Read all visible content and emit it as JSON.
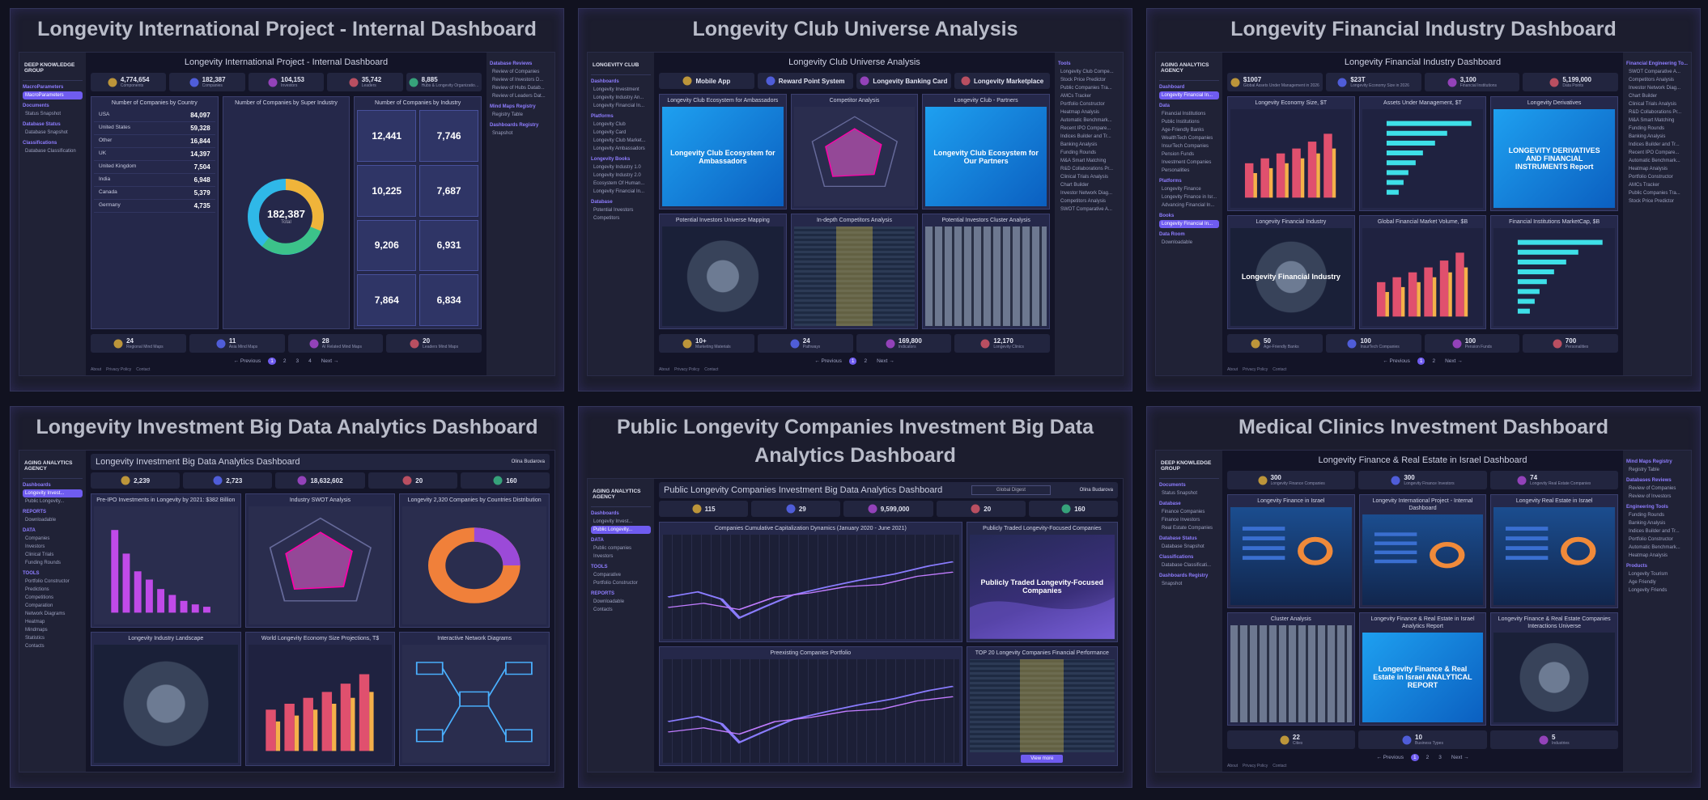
{
  "cards": [
    {
      "title": "Longevity International Project - Internal Dashboard",
      "screen": {
        "brand": "DEEP KNOWLEDGE GROUP",
        "left_nav": [
          {
            "head": "MacroParameters",
            "items": [
              "MacroParameters"
            ]
          },
          {
            "head": "Documents",
            "items": [
              "Status Snapshot"
            ]
          },
          {
            "head": "Database Status",
            "items": [
              "Database Snapshot"
            ]
          },
          {
            "head": "Classifications",
            "items": [
              "Database Classification"
            ]
          }
        ],
        "selected": "MacroParameters",
        "header": "Longevity International Project - Internal Dashboard",
        "stats": [
          {
            "value": "4,774,654",
            "label": "Components"
          },
          {
            "value": "182,387",
            "label": "Companies"
          },
          {
            "value": "104,153",
            "label": "Investors"
          },
          {
            "value": "35,742",
            "label": "Leaders"
          },
          {
            "value": "8,885",
            "label": "Hubs & Longevity Organizations"
          }
        ],
        "panels": [
          {
            "title": "Number of Companies by Country",
            "rows": [
              [
                "USA",
                "84,097"
              ],
              [
                "United States",
                "59,328"
              ],
              [
                "Other",
                "16,844"
              ],
              [
                "UK",
                "14,397"
              ],
              [
                "United Kingdom",
                "7,504"
              ],
              [
                "India",
                "6,948"
              ],
              [
                "Canada",
                "5,379"
              ],
              [
                "Germany",
                "4,735"
              ]
            ]
          },
          {
            "title": "Number of Companies by Super Industry",
            "center": [
              "182,387",
              "Total"
            ]
          },
          {
            "title": "Number of Companies by Industry",
            "tiles": [
              "12,441",
              "7,746",
              "10,225",
              "7,687",
              "9,206",
              "6,931",
              "7,864",
              "6,834"
            ]
          }
        ],
        "footer_stats": [
          {
            "value": "24",
            "label": "Regional Mind Maps"
          },
          {
            "value": "11",
            "label": "Asia Mind Maps"
          },
          {
            "value": "28",
            "label": "AI Related Mind Maps"
          },
          {
            "value": "20",
            "label": "Leaders Mind Maps"
          }
        ],
        "pager": [
          "← Previous",
          "1",
          "2",
          "3",
          "4",
          "Next →"
        ],
        "links": [
          "About",
          "Privacy Policy",
          "Contact"
        ],
        "right_nav": [
          {
            "head": "Database Reviews",
            "items": [
              "Review of Companies",
              "Review of Investors D...",
              "Review of Hubs Datab...",
              "Review of Leaders Dat..."
            ]
          },
          {
            "head": "Mind Maps Registry",
            "items": [
              "Registry Table"
            ]
          },
          {
            "head": "Dashboards Registry",
            "items": [
              "Snapshot"
            ]
          }
        ]
      }
    },
    {
      "title": "Longevity Club Universe Analysis",
      "screen": {
        "brand": "LONGEVITY CLUB",
        "left_nav": [
          {
            "head": "Dashboards",
            "items": [
              "Longevity Investment",
              "Longevity Industry An...",
              "Longevity Financial In..."
            ]
          },
          {
            "head": "Platforms",
            "items": [
              "Longevity Club",
              "Longevity Card",
              "Longevity Club Market...",
              "Longevity Ambassadors"
            ]
          },
          {
            "head": "Longevity Books",
            "items": [
              "Longevity Industry 1.0",
              "Longevity Industry 2.0",
              "Ecosystem Of Human...",
              "Longevity Financial In..."
            ]
          },
          {
            "head": "Database",
            "items": [
              "Potential Investors",
              "Competitors"
            ]
          }
        ],
        "header": "Longevity Club Universe Analysis",
        "stats": [
          {
            "label": "Mobile App"
          },
          {
            "label": "Reward Point System"
          },
          {
            "label": "Longevity Banking Card"
          },
          {
            "label": "Longevity Marketplace"
          }
        ],
        "panels": [
          {
            "title": "Longevity Club Ecosystem for Ambassadors",
            "caption": "Longevity Club Ecosystem for Ambassadors",
            "look": "blue"
          },
          {
            "title": "Competitor Analysis",
            "look": "radar"
          },
          {
            "title": "Longevity Club - Partners",
            "caption": "Longevity Club Ecosystem for Our Partners",
            "look": "blue"
          },
          {
            "title": "Potential Investors Universe Mapping",
            "look": "globe"
          },
          {
            "title": "In-depth Competitors Analysis",
            "look": "table"
          },
          {
            "title": "Potential Investors Cluster Analysis",
            "look": "mosaic"
          }
        ],
        "footer_stats": [
          {
            "value": "10+",
            "label": "Marketing Materials"
          },
          {
            "value": "24",
            "label": "Pathways"
          },
          {
            "value": "169,800",
            "label": "Indicators"
          },
          {
            "value": "12,170",
            "label": "Longevity Clinics"
          }
        ],
        "pager": [
          "← Previous",
          "1",
          "2",
          "Next →"
        ],
        "links": [
          "About",
          "Privacy Policy",
          "Contact"
        ],
        "right_nav": [
          {
            "head": "Tools",
            "items": [
              "Longevity Club Compe...",
              "Stock Price Predictor",
              "Public Companies Tra...",
              "AMCs Tracker",
              "Portfolio Constructor",
              "Heatmap Analysis",
              "Automatic Benchmark...",
              "Recent IPO Compare...",
              "Indices Builder and Tr...",
              "Banking Analysis",
              "Funding Rounds",
              "M&A Smart Matching",
              "R&D Collaborations Pr...",
              "Clinical Trials Analysis",
              "Chart Builder",
              "Investor Network Diag...",
              "Competitors Analysis",
              "SWOT Comparative A..."
            ]
          }
        ]
      }
    },
    {
      "title": "Longevity Financial Industry Dashboard",
      "screen": {
        "brand": "AGING ANALYTICS AGENCY",
        "left_nav": [
          {
            "head": "Dashboard",
            "items": [
              "Longevity Financial In..."
            ]
          },
          {
            "head": "Data",
            "items": [
              "Financial Institutions",
              "Public Institutions",
              "Age-Friendly Banks",
              "WealthTech Companies",
              "InsurTech Companies",
              "Pension Funds",
              "Investment Companies",
              "Personalities"
            ]
          },
          {
            "head": "Platforms",
            "items": [
              "Longevity Finance",
              "Longevity Finance in Isr...",
              "Advancing Financial In..."
            ]
          },
          {
            "head": "Books",
            "items": [
              "Longevity Financial In..."
            ]
          },
          {
            "head": "Data Room",
            "items": [
              "Downloadable"
            ]
          }
        ],
        "selected": "Longevity Financial In...",
        "header": "Longevity Financial Industry Dashboard",
        "stats": [
          {
            "value": "$1007",
            "label": "Global Assets Under Management in 2026"
          },
          {
            "value": "$23T",
            "label": "Longevity Economy Size in 2026"
          },
          {
            "value": "3,100",
            "label": "Financial Institutions"
          },
          {
            "value": "5,199,000",
            "label": "Data Points"
          }
        ],
        "panels": [
          {
            "title": "Longevity Economy Size, $T",
            "look": "bars"
          },
          {
            "title": "Assets Under Management, $T",
            "look": "hbars"
          },
          {
            "title": "Longevity Derivatives",
            "caption": "LONGEVITY DERIVATIVES AND FINANCIAL INSTRUMENTS Report",
            "look": "blue"
          },
          {
            "title": "Longevity Financial Industry",
            "caption": "Longevity Financial Industry",
            "look": "globe"
          },
          {
            "title": "Global Financial Market Volume, $B",
            "look": "bars"
          },
          {
            "title": "Financial Institutions MarketCap, $B",
            "look": "hbars"
          }
        ],
        "footer_stats": [
          {
            "value": "50",
            "label": "Age-Friendly Banks"
          },
          {
            "value": "100",
            "label": "InsurTech Companies"
          },
          {
            "value": "100",
            "label": "Pension Funds"
          },
          {
            "value": "700",
            "label": "Personalities"
          }
        ],
        "pager": [
          "← Previous",
          "1",
          "2",
          "Next →"
        ],
        "links": [
          "About",
          "Privacy Policy",
          "Contact"
        ],
        "right_nav": [
          {
            "head": "Financial Engineering To...",
            "items": [
              "SWOT Comparative A...",
              "Competitors Analysis",
              "Investor Network Diag...",
              "Chart Builder",
              "Clinical Trials Analysis",
              "R&D Collaborations Pr...",
              "M&A Smart Matching",
              "Funding Rounds",
              "Banking Analysis",
              "Indices Builder and Tr...",
              "Recent IPO Compare...",
              "Automatic Benchmark...",
              "Heatmap Analysis",
              "Portfolio Constructor",
              "AMCs Tracker",
              "Public Companies Tra...",
              "Stock Price Predictor"
            ]
          }
        ]
      }
    },
    {
      "title": "Longevity Investment Big Data Analytics Dashboard",
      "screen": {
        "brand": "AGING ANALYTICS AGENCY",
        "left_nav": [
          {
            "head": "Dashboards",
            "items": [
              "Longevity Invest...",
              "Public Longevity..."
            ]
          },
          {
            "head": "REPORTS",
            "items": [
              "Downloadable"
            ]
          },
          {
            "head": "DATA",
            "items": [
              "Companies",
              "Investors",
              "Clinical Trials",
              "Funding Rounds"
            ]
          },
          {
            "head": "TOOLS",
            "items": [
              "Portfolio Constructor",
              "Predictions",
              "Competitions",
              "Comparation",
              "Network Diagrams",
              "Heatmap",
              "Mindmaps",
              "Statistics",
              "Contacts"
            ]
          }
        ],
        "selected": "Longevity Invest...",
        "header": "Longevity Investment Big Data Analytics Dashboard",
        "user": "Olina Budarova",
        "stats": [
          {
            "value": "2,239"
          },
          {
            "value": "2,723"
          },
          {
            "value": "18,632,602"
          },
          {
            "value": "20"
          },
          {
            "value": "160"
          }
        ],
        "panels": [
          {
            "title": "Pre-IPO Investments in Longevity by 2021: $382 Billion",
            "look": "pbars"
          },
          {
            "title": "Industry SWOT Analysis",
            "look": "radar"
          },
          {
            "title": "Longevity 2,320 Companies by Countries Distribution",
            "look": "donut"
          },
          {
            "title": "Longevity Industry Landscape",
            "look": "globe"
          },
          {
            "title": "World Longevity Economy Size Projections, T$",
            "look": "bars"
          },
          {
            "title": "Interactive Network Diagrams",
            "look": "network"
          }
        ]
      }
    },
    {
      "title": "Public Longevity Companies Investment Big Data Analytics Dashboard",
      "screen": {
        "brand": "AGING ANALYTICS AGENCY",
        "left_nav": [
          {
            "head": "Dashboards",
            "items": [
              "Longevity Invest...",
              "Public Longevity..."
            ]
          },
          {
            "head": "DATA",
            "items": [
              "Public companies",
              "Investors"
            ]
          },
          {
            "head": "TOOLS",
            "items": [
              "Comparative",
              "Portfolio Constructor"
            ]
          },
          {
            "head": "REPORTS",
            "items": [
              "Downloadable",
              "Contacts"
            ]
          }
        ],
        "selected": "Public Longevity...",
        "header": "Public Longevity Companies Investment Big Data Analytics Dashboard",
        "search": "Global Digest",
        "user": "Olina Budarova",
        "stats": [
          {
            "value": "115"
          },
          {
            "value": "29"
          },
          {
            "value": "9,599,000"
          },
          {
            "value": "20"
          },
          {
            "value": "160"
          }
        ],
        "panels": [
          {
            "title": "Companies Cumulative Capitalization Dynamics (January 2020 - June 2021)",
            "look": "line"
          },
          {
            "title": "Publicly Traded Longevity-Focused Companies",
            "caption": "Publicly Traded Longevity-Focused Companies",
            "look": "wave"
          },
          {
            "title": "Preexisting Companies Portfolio",
            "look": "line"
          },
          {
            "title": "TOP 20 Longevity Companies Financial Performance",
            "look": "table",
            "button": "View more"
          }
        ]
      }
    },
    {
      "title": "Medical Clinics Investment Dashboard",
      "screen": {
        "brand": "DEEP KNOWLEDGE GROUP",
        "left_nav": [
          {
            "head": "Documents",
            "items": [
              "Status Snapshot"
            ]
          },
          {
            "head": "Database",
            "items": [
              "Finance Companies",
              "Finance Investors",
              "Real Estate Companies"
            ]
          },
          {
            "head": "Database Status",
            "items": [
              "Database Snapshot"
            ]
          },
          {
            "head": "Classifications",
            "items": [
              "Database Classificati..."
            ]
          },
          {
            "head": "Dashboards Registry",
            "items": [
              "Snapshot"
            ]
          }
        ],
        "header": "Longevity Finance & Real Estate in Israel Dashboard",
        "stats": [
          {
            "value": "300",
            "label": "Longevity Finance Companies"
          },
          {
            "value": "300",
            "label": "Longevity Finance Investors"
          },
          {
            "value": "74",
            "label": "Longevity Real Estate Companies"
          }
        ],
        "panels": [
          {
            "title": "Longevity Finance in Israel",
            "look": "dash"
          },
          {
            "title": "Longevity International Project - Internal Dashboard",
            "look": "dash"
          },
          {
            "title": "Longevity Real Estate in Israel",
            "look": "dash"
          },
          {
            "title": "Cluster Analysis",
            "look": "mosaic"
          },
          {
            "title": "Longevity Finance & Real Estate in Israel Analytics Report",
            "caption": "Longevity Finance & Real Estate in Israel ANALYTICAL REPORT",
            "look": "blue"
          },
          {
            "title": "Longevity Finance & Real Estate Companies Interactions Universe",
            "look": "globe"
          }
        ],
        "footer_stats": [
          {
            "value": "22",
            "label": "Cities"
          },
          {
            "value": "10",
            "label": "Business Types"
          },
          {
            "value": "5",
            "label": "Industries"
          }
        ],
        "pager": [
          "← Previous",
          "1",
          "2",
          "3",
          "Next →"
        ],
        "links": [
          "About",
          "Privacy Policy",
          "Contact"
        ],
        "right_nav": [
          {
            "head": "Mind Maps Registry",
            "items": [
              "Registry Table"
            ]
          },
          {
            "head": "Databases Reviews",
            "items": [
              "Review of Companies",
              "Review of Investors"
            ]
          },
          {
            "head": "Engineering Tools",
            "items": [
              "Funding Rounds",
              "Banking Analysis",
              "Indices Builder and Tr...",
              "Portfolio Constructor",
              "Automatic Benchmark...",
              "Heatmap Analysis"
            ]
          },
          {
            "head": "Products",
            "items": [
              "Longevity Tourism",
              "Age Friendly",
              "Longevity Friends"
            ]
          }
        ]
      }
    }
  ]
}
